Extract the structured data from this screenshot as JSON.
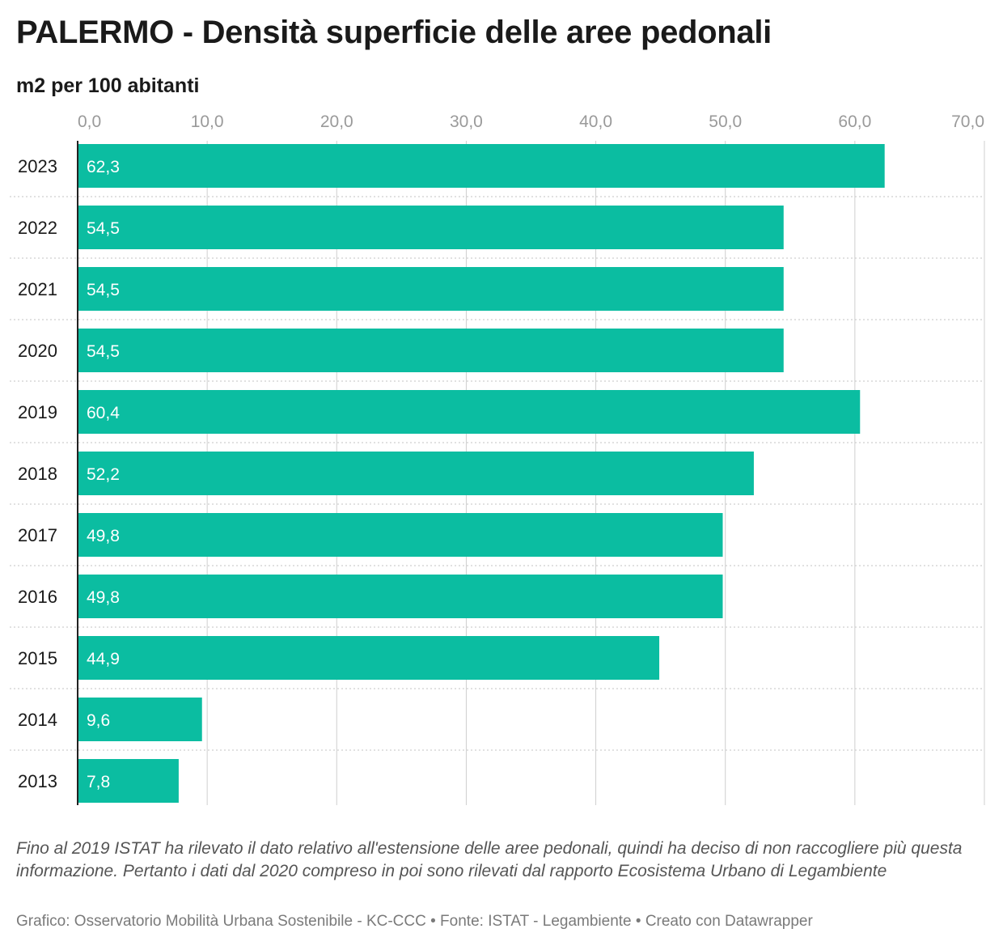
{
  "title": "PALERMO - Densità superficie delle aree pedonali",
  "subtitle": "m2 per 100 abitanti",
  "notes": "Fino al 2019 ISTAT ha rilevato il dato relativo all'estensione delle aree pedonali, quindi ha deciso di non raccogliere più questa informazione. Pertanto i dati dal 2020 compreso in poi sono rilevati dal rapporto Ecosistema Urbano di Legambiente",
  "footer": "Grafico: Osservatorio Mobilità Urbana Sostenibile - KC-CCC • Fonte: ISTAT - Legambiente • Creato con Datawrapper",
  "colors": {
    "bar": "#0bbda1",
    "bar_label": "#ffffff",
    "tick_label": "#9a9a9a",
    "grid": "#cfcfcf"
  },
  "chart_data": {
    "type": "bar",
    "orientation": "horizontal",
    "categories": [
      "2023",
      "2022",
      "2021",
      "2020",
      "2019",
      "2018",
      "2017",
      "2016",
      "2015",
      "2014",
      "2013"
    ],
    "values": [
      62.3,
      54.5,
      54.5,
      54.5,
      60.4,
      52.2,
      49.8,
      49.8,
      44.9,
      9.6,
      7.8
    ],
    "value_labels": [
      "62,3",
      "54,5",
      "54,5",
      "54,5",
      "60,4",
      "52,2",
      "49,8",
      "49,8",
      "44,9",
      "9,6",
      "7,8"
    ],
    "x_ticks": [
      0,
      10,
      20,
      30,
      40,
      50,
      60,
      70
    ],
    "x_tick_labels": [
      "0,0",
      "10,0",
      "20,0",
      "30,0",
      "40,0",
      "50,0",
      "60,0",
      "70,0"
    ],
    "xlim": [
      0,
      70
    ],
    "grid": true,
    "legend": "none"
  }
}
